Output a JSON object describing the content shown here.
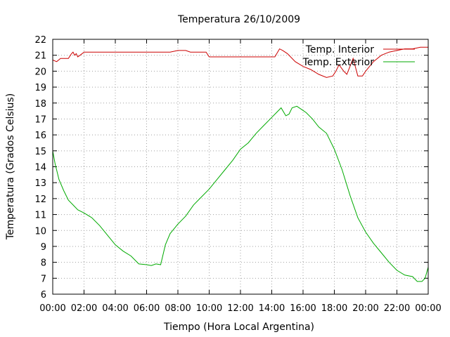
{
  "chart_data": {
    "type": "line",
    "title": "Temperatura 26/10/2009",
    "xlabel": "Tiempo (Hora Local Argentina)",
    "ylabel": "Temperatura (Grados Celsius)",
    "x_tick_labels": [
      "00:00",
      "02:00",
      "04:00",
      "06:00",
      "08:00",
      "10:00",
      "12:00",
      "14:00",
      "16:00",
      "18:00",
      "20:00",
      "22:00",
      "00:00"
    ],
    "xlim": [
      0,
      24
    ],
    "ylim": [
      6,
      22
    ],
    "y_ticks": [
      6,
      7,
      8,
      9,
      10,
      11,
      12,
      13,
      14,
      15,
      16,
      17,
      18,
      19,
      20,
      21,
      22
    ],
    "grid": true,
    "legend_position": "top-right",
    "series": [
      {
        "name": "Temp. Interior",
        "color": "#cc0000",
        "x": [
          0,
          0.25,
          0.5,
          0.75,
          1,
          1.2,
          1.3,
          1.4,
          1.5,
          1.6,
          1.75,
          2,
          2.5,
          3,
          4,
          5,
          6,
          7,
          7.5,
          8,
          8.2,
          8.5,
          8.8,
          9,
          9.5,
          9.8,
          10,
          11,
          12,
          13,
          14,
          14.2,
          14.5,
          14.7,
          15,
          15.5,
          16,
          16.5,
          17,
          17.5,
          17.9,
          18.1,
          18.3,
          18.6,
          18.8,
          19,
          19.2,
          19.5,
          19.8,
          20,
          20.5,
          21,
          21.5,
          22,
          22.5,
          23,
          23.5,
          24
        ],
        "y": [
          20.7,
          20.6,
          20.8,
          20.8,
          20.8,
          21.1,
          21.2,
          21,
          21.1,
          20.9,
          21,
          21.2,
          21.2,
          21.2,
          21.2,
          21.2,
          21.2,
          21.2,
          21.2,
          21.3,
          21.3,
          21.3,
          21.2,
          21.2,
          21.2,
          21.2,
          20.9,
          20.9,
          20.9,
          20.9,
          20.9,
          20.9,
          21.4,
          21.3,
          21.1,
          20.6,
          20.3,
          20.1,
          19.8,
          19.6,
          19.7,
          20,
          20.4,
          20,
          19.8,
          20.3,
          20.8,
          19.7,
          19.7,
          20,
          20.6,
          21,
          21.2,
          21.3,
          21.4,
          21.4,
          21.5,
          21.5
        ]
      },
      {
        "name": "Temp. Exterior",
        "color": "#00aa00",
        "x": [
          0,
          0.15,
          0.4,
          0.7,
          1,
          1.3,
          1.6,
          2,
          2.5,
          3,
          3.5,
          4,
          4.5,
          5,
          5.5,
          6,
          6.3,
          6.6,
          6.9,
          7.2,
          7.5,
          8,
          8.5,
          9,
          9.5,
          10,
          10.5,
          11,
          11.5,
          12,
          12.5,
          13,
          13.5,
          14,
          14.3,
          14.6,
          14.9,
          15.1,
          15.3,
          15.6,
          15.9,
          16.2,
          16.6,
          17,
          17.5,
          18,
          18.5,
          19,
          19.5,
          20,
          20.5,
          21,
          21.5,
          22,
          22.5,
          23,
          23.3,
          23.6,
          23.8,
          24
        ],
        "y": [
          15,
          14.2,
          13.2,
          12.5,
          11.9,
          11.6,
          11.3,
          11.1,
          10.8,
          10.3,
          9.7,
          9.1,
          8.7,
          8.4,
          7.9,
          7.85,
          7.8,
          7.9,
          7.85,
          9.1,
          9.8,
          10.4,
          10.9,
          11.6,
          12.1,
          12.6,
          13.2,
          13.8,
          14.4,
          15.1,
          15.5,
          16.1,
          16.6,
          17.1,
          17.4,
          17.7,
          17.2,
          17.3,
          17.7,
          17.8,
          17.6,
          17.4,
          17,
          16.5,
          16.1,
          15.1,
          13.8,
          12.2,
          10.8,
          9.9,
          9.2,
          8.6,
          8,
          7.5,
          7.2,
          7.1,
          6.8,
          6.8,
          7,
          7.7
        ]
      }
    ]
  }
}
